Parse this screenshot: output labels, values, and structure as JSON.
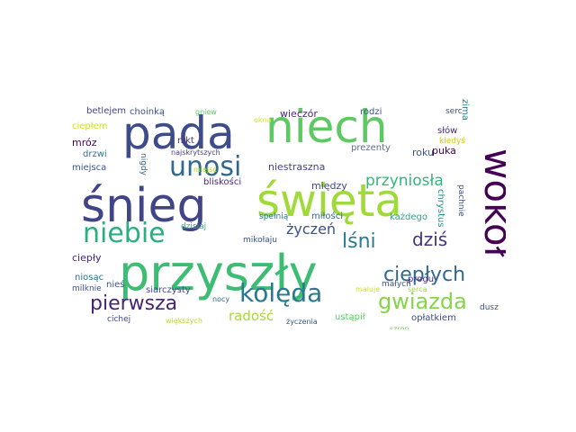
{
  "words": [
    {
      "text": "przyszły",
      "color": "#3dbc74"
    },
    {
      "text": "święta",
      "color": "#a0da39"
    },
    {
      "text": "śnieg",
      "color": "#414487"
    },
    {
      "text": "pada",
      "color": "#3e4c8a"
    },
    {
      "text": "niech",
      "color": "#5ec962"
    },
    {
      "text": "wokół",
      "color": "#440154"
    },
    {
      "text": "kolęda",
      "color": "#2a788e"
    },
    {
      "text": "niebie",
      "color": "#29af7f"
    },
    {
      "text": "unosi",
      "color": "#31688e"
    },
    {
      "text": "gwiazda",
      "color": "#86d549"
    },
    {
      "text": "pierwsza",
      "color": "#482475"
    },
    {
      "text": "cieplych_main",
      "color": "#31688e"
    },
    {
      "text": "lśni",
      "color": "#287c8e"
    },
    {
      "text": "życzeń",
      "color": "#3b528b"
    },
    {
      "text": "dziś",
      "color": "#46327e"
    },
    {
      "text": "przyniosła",
      "color": "#34b679"
    },
    {
      "text": "radość",
      "color": "#a5db36"
    },
    {
      "text": "wieczór",
      "color": "#482878"
    },
    {
      "text": "niestraszna",
      "color": "#414487"
    },
    {
      "text": "między",
      "color": "#3e4989"
    },
    {
      "text": "prezenty",
      "color": "#5b6d8f"
    },
    {
      "text": "roku",
      "color": "#3a548c"
    },
    {
      "text": "puka",
      "color": "#440154"
    },
    {
      "text": "słów",
      "color": "#482878"
    },
    {
      "text": "zima",
      "color": "#2a788e"
    },
    {
      "text": "kiedyś",
      "color": "#d8c41f"
    },
    {
      "text": "serc",
      "color": "#3e4c8a"
    },
    {
      "text": "rodzi",
      "color": "#3b528b"
    },
    {
      "text": "gniew",
      "color": "#5ec962"
    },
    {
      "text": "okna",
      "color": "#dfe318"
    },
    {
      "text": "betlejem",
      "color": "#414487"
    },
    {
      "text": "choinką",
      "color": "#3b528b"
    },
    {
      "text": "ciepłem",
      "color": "#cde11d"
    },
    {
      "text": "mróz",
      "color": "#440154"
    },
    {
      "text": "drzwi",
      "color": "#2a788e"
    },
    {
      "text": "miejsca",
      "color": "#3b528b"
    },
    {
      "text": "nigdy",
      "color": "#33638d"
    },
    {
      "text": "nikt",
      "color": "#46327e"
    },
    {
      "text": "najskrytszych",
      "color": "#443a83"
    },
    {
      "text": "miejsc",
      "color": "#b5de2b"
    },
    {
      "text": "bliskości",
      "color": "#472c7a"
    },
    {
      "text": "spełnią",
      "color": "#2d708e"
    },
    {
      "text": "miłości",
      "color": "#31688e"
    },
    {
      "text": "każdego",
      "color": "#22a884"
    },
    {
      "text": "chrystus",
      "color": "#21918c"
    },
    {
      "text": "pachnie",
      "color": "#3b528b"
    },
    {
      "text": "dzisiaj",
      "color": "#35b779"
    },
    {
      "text": "mikołaju",
      "color": "#3b528b"
    },
    {
      "text": "ciepły",
      "color": "#482475"
    },
    {
      "text": "niosąc",
      "color": "#2c728e"
    },
    {
      "text": "nieś",
      "color": "#3b528b"
    },
    {
      "text": "milknie",
      "color": "#3b528b"
    },
    {
      "text": "siarczysty",
      "color": "#3e4a89"
    },
    {
      "text": "nocy",
      "color": "#355f8d"
    },
    {
      "text": "maluje",
      "color": "#d0e11c"
    },
    {
      "text": "progu",
      "color": "#472d7b"
    },
    {
      "text": "małych",
      "color": "#3b528b"
    },
    {
      "text": "serca",
      "color": "#a8db34"
    },
    {
      "text": "ustąpił",
      "color": "#5ec962"
    },
    {
      "text": "opłatkiem",
      "color": "#3e4a89"
    },
    {
      "text": "dusz",
      "color": "#3b528b"
    },
    {
      "text": "cichej",
      "color": "#3e4989"
    },
    {
      "text": "większych",
      "color": "#b5de2b"
    },
    {
      "text": "życzenia",
      "color": "#3b528b"
    },
    {
      "text": "szron",
      "color": "#6ece58"
    }
  ],
  "labels": {
    "cieplych_main": "ciepłych"
  }
}
